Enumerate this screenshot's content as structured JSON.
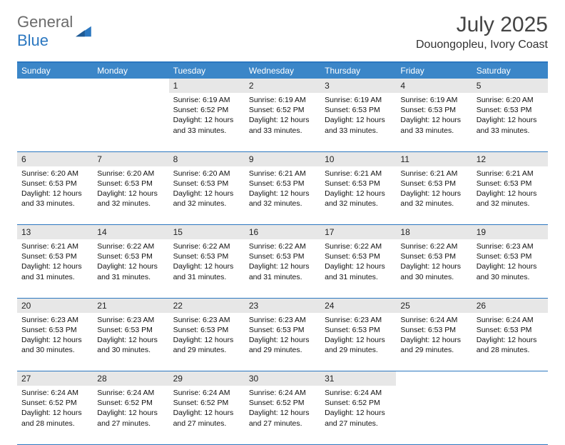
{
  "brand": {
    "part1": "General",
    "part2": "Blue"
  },
  "title": "July 2025",
  "location": "Douongopleu, Ivory Coast",
  "colors": {
    "accent": "#3b86c8",
    "rule": "#2b77c0",
    "daybg": "#e7e7e7"
  },
  "day_headers": [
    "Sunday",
    "Monday",
    "Tuesday",
    "Wednesday",
    "Thursday",
    "Friday",
    "Saturday"
  ],
  "weeks": [
    [
      null,
      null,
      {
        "n": "1",
        "sr": "6:19 AM",
        "ss": "6:52 PM",
        "dl": "12 hours and 33 minutes."
      },
      {
        "n": "2",
        "sr": "6:19 AM",
        "ss": "6:52 PM",
        "dl": "12 hours and 33 minutes."
      },
      {
        "n": "3",
        "sr": "6:19 AM",
        "ss": "6:53 PM",
        "dl": "12 hours and 33 minutes."
      },
      {
        "n": "4",
        "sr": "6:19 AM",
        "ss": "6:53 PM",
        "dl": "12 hours and 33 minutes."
      },
      {
        "n": "5",
        "sr": "6:20 AM",
        "ss": "6:53 PM",
        "dl": "12 hours and 33 minutes."
      }
    ],
    [
      {
        "n": "6",
        "sr": "6:20 AM",
        "ss": "6:53 PM",
        "dl": "12 hours and 33 minutes."
      },
      {
        "n": "7",
        "sr": "6:20 AM",
        "ss": "6:53 PM",
        "dl": "12 hours and 32 minutes."
      },
      {
        "n": "8",
        "sr": "6:20 AM",
        "ss": "6:53 PM",
        "dl": "12 hours and 32 minutes."
      },
      {
        "n": "9",
        "sr": "6:21 AM",
        "ss": "6:53 PM",
        "dl": "12 hours and 32 minutes."
      },
      {
        "n": "10",
        "sr": "6:21 AM",
        "ss": "6:53 PM",
        "dl": "12 hours and 32 minutes."
      },
      {
        "n": "11",
        "sr": "6:21 AM",
        "ss": "6:53 PM",
        "dl": "12 hours and 32 minutes."
      },
      {
        "n": "12",
        "sr": "6:21 AM",
        "ss": "6:53 PM",
        "dl": "12 hours and 32 minutes."
      }
    ],
    [
      {
        "n": "13",
        "sr": "6:21 AM",
        "ss": "6:53 PM",
        "dl": "12 hours and 31 minutes."
      },
      {
        "n": "14",
        "sr": "6:22 AM",
        "ss": "6:53 PM",
        "dl": "12 hours and 31 minutes."
      },
      {
        "n": "15",
        "sr": "6:22 AM",
        "ss": "6:53 PM",
        "dl": "12 hours and 31 minutes."
      },
      {
        "n": "16",
        "sr": "6:22 AM",
        "ss": "6:53 PM",
        "dl": "12 hours and 31 minutes."
      },
      {
        "n": "17",
        "sr": "6:22 AM",
        "ss": "6:53 PM",
        "dl": "12 hours and 31 minutes."
      },
      {
        "n": "18",
        "sr": "6:22 AM",
        "ss": "6:53 PM",
        "dl": "12 hours and 30 minutes."
      },
      {
        "n": "19",
        "sr": "6:23 AM",
        "ss": "6:53 PM",
        "dl": "12 hours and 30 minutes."
      }
    ],
    [
      {
        "n": "20",
        "sr": "6:23 AM",
        "ss": "6:53 PM",
        "dl": "12 hours and 30 minutes."
      },
      {
        "n": "21",
        "sr": "6:23 AM",
        "ss": "6:53 PM",
        "dl": "12 hours and 30 minutes."
      },
      {
        "n": "22",
        "sr": "6:23 AM",
        "ss": "6:53 PM",
        "dl": "12 hours and 29 minutes."
      },
      {
        "n": "23",
        "sr": "6:23 AM",
        "ss": "6:53 PM",
        "dl": "12 hours and 29 minutes."
      },
      {
        "n": "24",
        "sr": "6:23 AM",
        "ss": "6:53 PM",
        "dl": "12 hours and 29 minutes."
      },
      {
        "n": "25",
        "sr": "6:24 AM",
        "ss": "6:53 PM",
        "dl": "12 hours and 29 minutes."
      },
      {
        "n": "26",
        "sr": "6:24 AM",
        "ss": "6:53 PM",
        "dl": "12 hours and 28 minutes."
      }
    ],
    [
      {
        "n": "27",
        "sr": "6:24 AM",
        "ss": "6:52 PM",
        "dl": "12 hours and 28 minutes."
      },
      {
        "n": "28",
        "sr": "6:24 AM",
        "ss": "6:52 PM",
        "dl": "12 hours and 27 minutes."
      },
      {
        "n": "29",
        "sr": "6:24 AM",
        "ss": "6:52 PM",
        "dl": "12 hours and 27 minutes."
      },
      {
        "n": "30",
        "sr": "6:24 AM",
        "ss": "6:52 PM",
        "dl": "12 hours and 27 minutes."
      },
      {
        "n": "31",
        "sr": "6:24 AM",
        "ss": "6:52 PM",
        "dl": "12 hours and 27 minutes."
      },
      null,
      null
    ]
  ],
  "labels": {
    "sunrise": "Sunrise:",
    "sunset": "Sunset:",
    "daylight": "Daylight:"
  }
}
